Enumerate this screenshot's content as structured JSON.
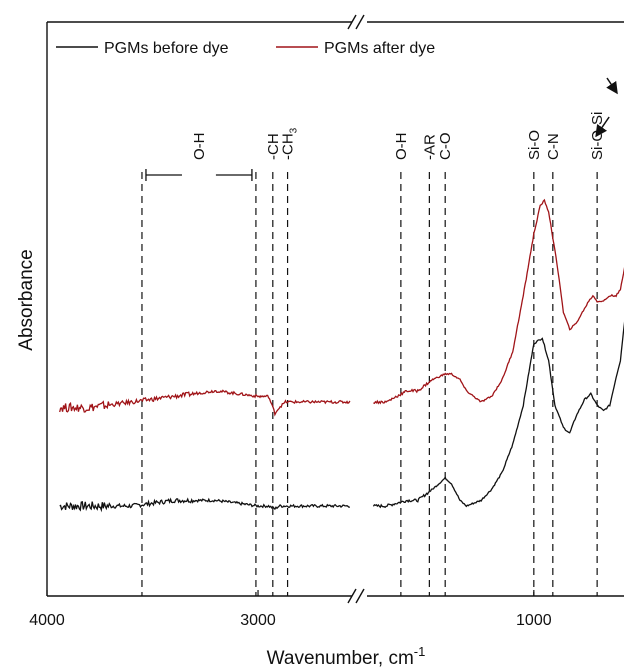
{
  "chart_data": {
    "type": "line",
    "xlabel": "Wavenumber, cm",
    "xlabel_superscript": "-1",
    "ylabel": "Absorbance",
    "x_reversed": true,
    "axis_break": true,
    "xlim_left_segment": [
      4000,
      2550
    ],
    "xlim_right_segment": [
      1800,
      450
    ],
    "x_ticks": [
      {
        "value": 4000,
        "label": "4000"
      },
      {
        "value": 3000,
        "label": "3000"
      },
      {
        "value": 1000,
        "label": "1000"
      }
    ],
    "y_ticks": [],
    "legend": {
      "placement": "top-left",
      "entries": [
        {
          "name": "PGMs before dye",
          "color": "#111111"
        },
        {
          "name": "PGMs after dye",
          "color": "#a01418"
        }
      ]
    },
    "series": [
      {
        "name": "PGMs before dye",
        "color": "#111111",
        "x": [
          3940,
          3800,
          3600,
          3400,
          3200,
          3000,
          2950,
          2920,
          2900,
          2850,
          2700,
          2560,
          1760,
          1700,
          1600,
          1550,
          1480,
          1420,
          1390,
          1350,
          1320,
          1250,
          1200,
          1150,
          1100,
          1050,
          1000,
          960,
          930,
          900,
          860,
          830,
          800,
          760,
          730,
          700,
          670,
          640,
          610,
          590,
          570,
          545,
          520,
          490,
          470,
          460
        ],
        "y": [
          0.04,
          0.04,
          0.04,
          0.05,
          0.05,
          0.04,
          0.04,
          0.035,
          0.04,
          0.04,
          0.04,
          0.04,
          0.04,
          0.04,
          0.05,
          0.05,
          0.07,
          0.09,
          0.08,
          0.05,
          0.04,
          0.05,
          0.07,
          0.1,
          0.15,
          0.22,
          0.33,
          0.34,
          0.3,
          0.22,
          0.18,
          0.17,
          0.2,
          0.23,
          0.24,
          0.22,
          0.21,
          0.22,
          0.27,
          0.3,
          0.37,
          0.5,
          0.68,
          0.78,
          0.83,
          0.84
        ]
      },
      {
        "name": "PGMs after dye",
        "color": "#a01418",
        "x": [
          3940,
          3800,
          3600,
          3400,
          3200,
          3000,
          2950,
          2920,
          2900,
          2870,
          2850,
          2700,
          2560,
          1760,
          1700,
          1650,
          1600,
          1550,
          1480,
          1420,
          1390,
          1350,
          1320,
          1250,
          1200,
          1150,
          1100,
          1050,
          1000,
          970,
          950,
          930,
          900,
          880,
          860,
          830,
          800,
          770,
          740,
          720,
          700,
          670,
          640,
          610,
          590,
          570,
          545,
          520,
          500,
          480,
          465
        ],
        "y": [
          0.25,
          0.25,
          0.26,
          0.27,
          0.28,
          0.27,
          0.27,
          0.24,
          0.25,
          0.26,
          0.26,
          0.26,
          0.26,
          0.26,
          0.26,
          0.27,
          0.28,
          0.28,
          0.3,
          0.31,
          0.31,
          0.3,
          0.28,
          0.26,
          0.27,
          0.3,
          0.35,
          0.45,
          0.56,
          0.61,
          0.62,
          0.6,
          0.53,
          0.48,
          0.42,
          0.39,
          0.4,
          0.42,
          0.44,
          0.45,
          0.44,
          0.44,
          0.45,
          0.45,
          0.46,
          0.5,
          0.6,
          0.73,
          0.84,
          0.9,
          0.94
        ]
      }
    ],
    "annotations": [
      {
        "label": "O-H",
        "sub": "",
        "x": 3550
      },
      {
        "label": "O-H",
        "sub": "",
        "x": 3010
      },
      {
        "label": "-CH",
        "sub": "",
        "x": 2930
      },
      {
        "label": "-CH",
        "sub": "3",
        "x": 2860
      },
      {
        "label": "O-H",
        "sub": "",
        "x": 1630
      },
      {
        "label": "-AR",
        "sub": "",
        "x": 1495
      },
      {
        "label": "C-O",
        "sub": "",
        "x": 1420
      },
      {
        "label": "Si-O",
        "sub": "",
        "x": 1000
      },
      {
        "label": "C-N",
        "sub": "",
        "x": 910
      },
      {
        "label": "Si-O-Si",
        "sub": "",
        "x": 700
      },
      {
        "label": "",
        "sub": "",
        "x": 465
      }
    ],
    "bracket": {
      "label": "O-H",
      "x_from": 3550,
      "x_to": 3010
    }
  }
}
